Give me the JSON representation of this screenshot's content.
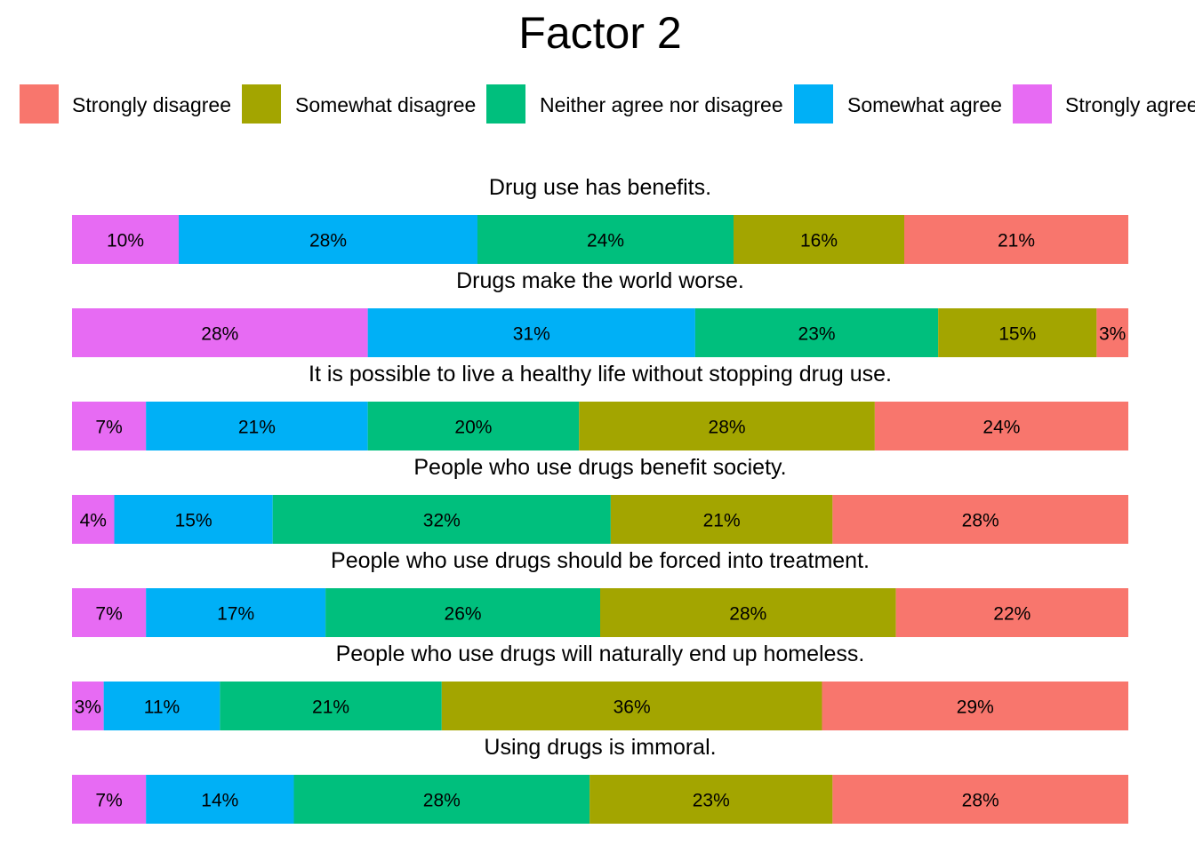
{
  "chart_data": {
    "type": "bar",
    "orientation": "horizontal-stacked-100",
    "title": "Factor 2",
    "legend_position": "top",
    "grid": false,
    "legend": [
      {
        "key": "strongly_disagree",
        "label": "Strongly disagree",
        "color": "#F8766D"
      },
      {
        "key": "somewhat_disagree",
        "label": "Somewhat disagree",
        "color": "#A3A500"
      },
      {
        "key": "neither",
        "label": "Neither agree nor disagree",
        "color": "#00BF7D"
      },
      {
        "key": "somewhat_agree",
        "label": "Somewhat agree",
        "color": "#00B0F6"
      },
      {
        "key": "strongly_agree",
        "label": "Strongly agree",
        "color": "#E76BF3"
      }
    ],
    "stack_order_left_to_right": [
      "strongly_agree",
      "somewhat_agree",
      "neither",
      "somewhat_disagree",
      "strongly_disagree"
    ],
    "categories": [
      {
        "question": "Drug use has benefits.",
        "values": {
          "strongly_agree": 10,
          "somewhat_agree": 28,
          "neither": 24,
          "somewhat_disagree": 16,
          "strongly_disagree": 21
        },
        "labels": {
          "strongly_agree": "10%",
          "somewhat_agree": "28%",
          "neither": "24%",
          "somewhat_disagree": "16%",
          "strongly_disagree": "21%"
        }
      },
      {
        "question": "Drugs make the world worse.",
        "values": {
          "strongly_agree": 28,
          "somewhat_agree": 31,
          "neither": 23,
          "somewhat_disagree": 15,
          "strongly_disagree": 3
        },
        "labels": {
          "strongly_agree": "28%",
          "somewhat_agree": "31%",
          "neither": "23%",
          "somewhat_disagree": "15%",
          "strongly_disagree": "3%"
        }
      },
      {
        "question": "It is possible to live a healthy life without stopping drug use.",
        "values": {
          "strongly_agree": 7,
          "somewhat_agree": 21,
          "neither": 20,
          "somewhat_disagree": 28,
          "strongly_disagree": 24
        },
        "labels": {
          "strongly_agree": "7%",
          "somewhat_agree": "21%",
          "neither": "20%",
          "somewhat_disagree": "28%",
          "strongly_disagree": "24%"
        }
      },
      {
        "question": "People who use drugs benefit society.",
        "values": {
          "strongly_agree": 4,
          "somewhat_agree": 15,
          "neither": 32,
          "somewhat_disagree": 21,
          "strongly_disagree": 28
        },
        "labels": {
          "strongly_agree": "4%",
          "somewhat_agree": "15%",
          "neither": "32%",
          "somewhat_disagree": "21%",
          "strongly_disagree": "28%"
        }
      },
      {
        "question": "People who use drugs should be forced into treatment.",
        "values": {
          "strongly_agree": 7,
          "somewhat_agree": 17,
          "neither": 26,
          "somewhat_disagree": 28,
          "strongly_disagree": 22
        },
        "labels": {
          "strongly_agree": "7%",
          "somewhat_agree": "17%",
          "neither": "26%",
          "somewhat_disagree": "28%",
          "strongly_disagree": "22%"
        }
      },
      {
        "question": "People who use drugs will naturally end up homeless.",
        "values": {
          "strongly_agree": 3,
          "somewhat_agree": 11,
          "neither": 21,
          "somewhat_disagree": 36,
          "strongly_disagree": 29
        },
        "labels": {
          "strongly_agree": "3%",
          "somewhat_agree": "11%",
          "neither": "21%",
          "somewhat_disagree": "36%",
          "strongly_disagree": "29%"
        }
      },
      {
        "question": "Using drugs is immoral.",
        "values": {
          "strongly_agree": 7,
          "somewhat_agree": 14,
          "neither": 28,
          "somewhat_disagree": 23,
          "strongly_disagree": 28
        },
        "labels": {
          "strongly_agree": "7%",
          "somewhat_agree": "14%",
          "neither": "28%",
          "somewhat_disagree": "23%",
          "strongly_disagree": "28%"
        }
      }
    ]
  }
}
